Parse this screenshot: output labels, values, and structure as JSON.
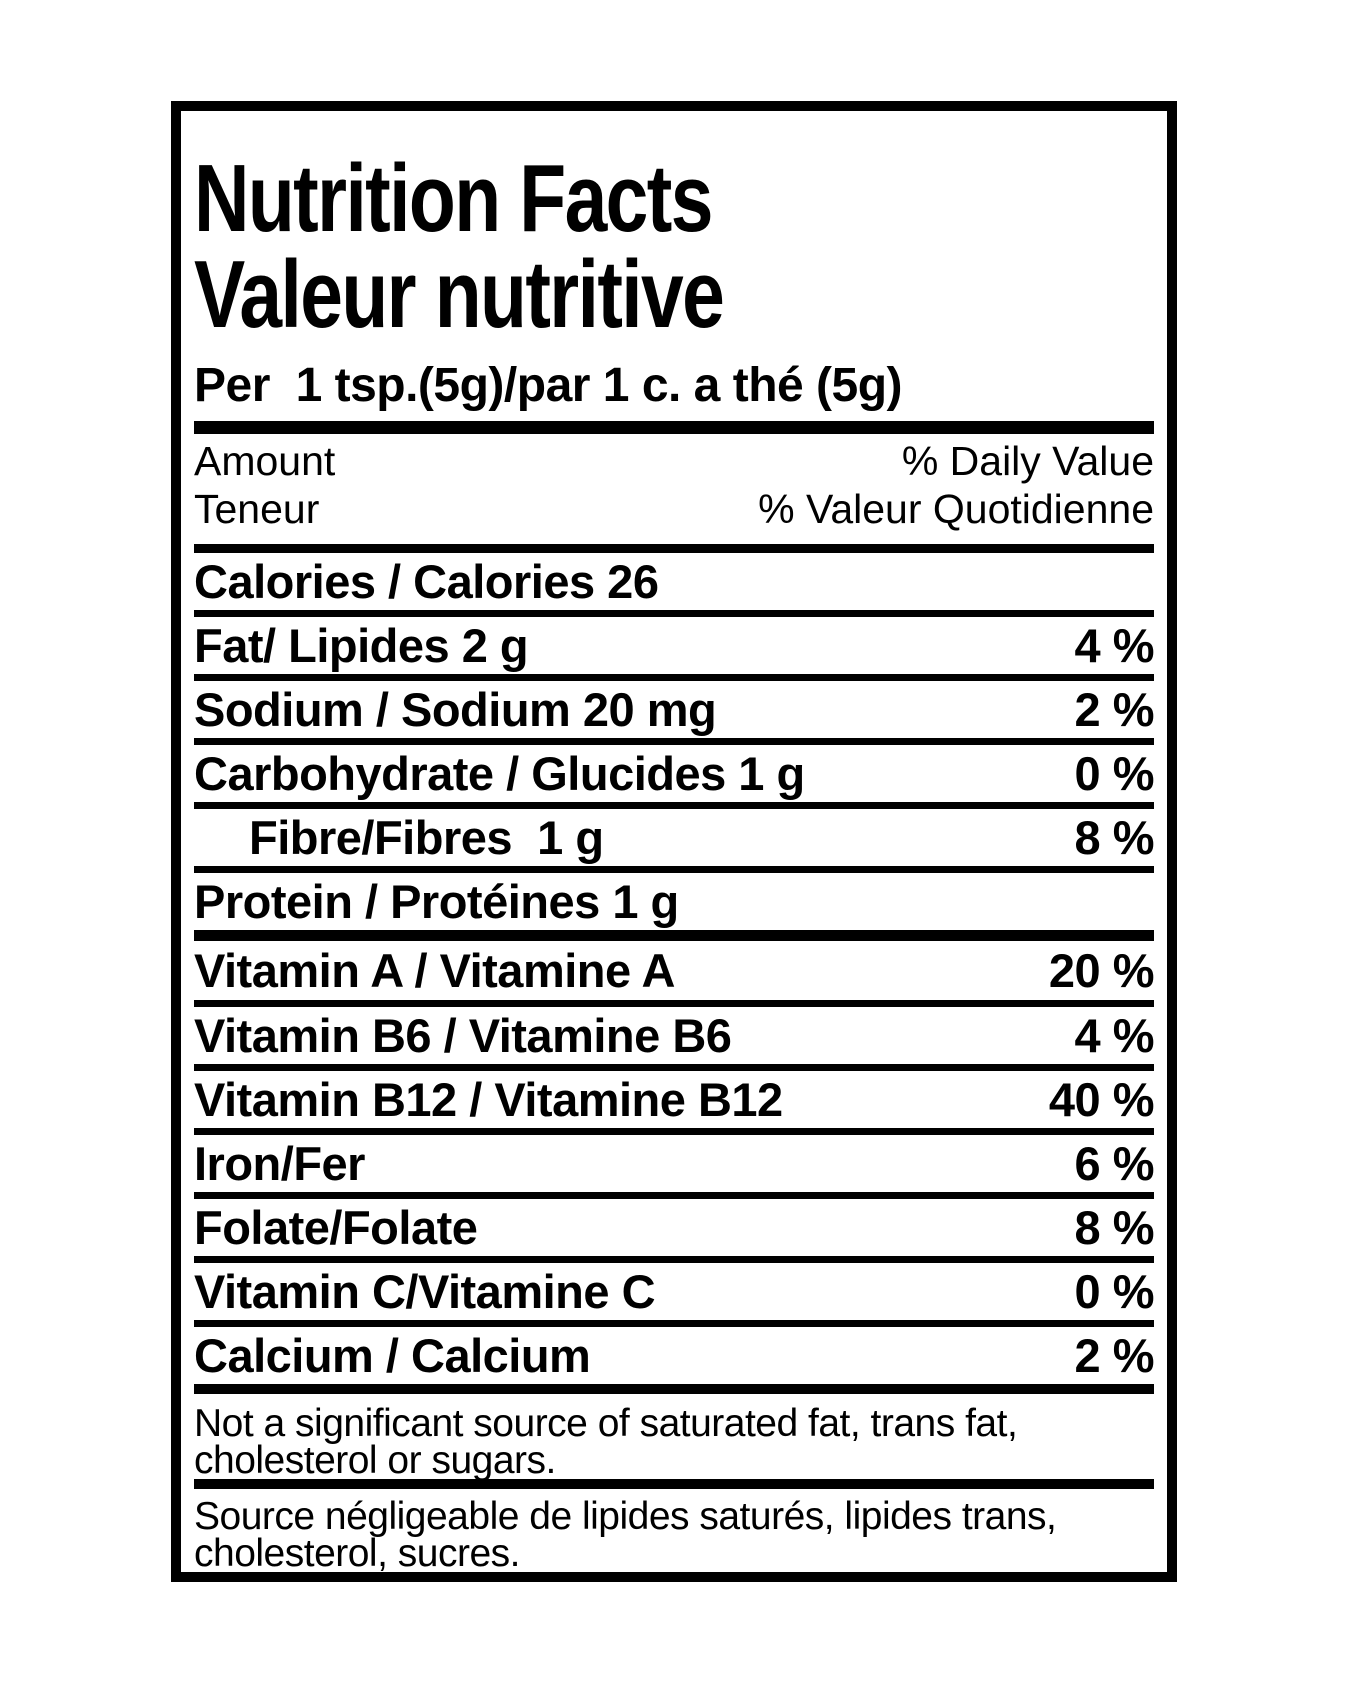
{
  "label": {
    "title_en": "Nutrition Facts",
    "title_fr": "Valeur nutritive",
    "serving": "Per  1 tsp.(5g)/par 1 c. a thé (5g)",
    "col_headers": {
      "amount_en": "Amount",
      "amount_fr": "Teneur",
      "dv_en": "% Daily Value",
      "dv_fr": "% Valeur Quotidienne"
    },
    "rows": [
      {
        "name": "Calories / Calories 26",
        "dv": ""
      },
      {
        "name": "Fat/ Lipides 2 g",
        "dv": "4 %"
      },
      {
        "name": "Sodium / Sodium 20 mg",
        "dv": "2 %"
      },
      {
        "name": "Carbohydrate / Glucides 1 g",
        "dv": "0 %"
      },
      {
        "name": "Fibre/Fibres  1 g",
        "dv": "8 %"
      },
      {
        "name": "Protein / Protéines 1 g",
        "dv": ""
      },
      {
        "name": "Vitamin A / Vitamine A",
        "dv": "20 %"
      },
      {
        "name": "Vitamin B6 / Vitamine B6",
        "dv": "4 %"
      },
      {
        "name": "Vitamin B12 / Vitamine B12",
        "dv": "40 %"
      },
      {
        "name": "Iron/Fer",
        "dv": "6 %"
      },
      {
        "name": "Folate/Folate",
        "dv": "8 %"
      },
      {
        "name": "Vitamin C/Vitamine C",
        "dv": "0 %"
      },
      {
        "name": "Calcium / Calcium",
        "dv": "2 %"
      }
    ],
    "footnote_en": {
      "line1": "Not a significant source of saturated fat, trans fat,",
      "line2": "cholesterol or sugars."
    },
    "footnote_fr": {
      "line1": "Source négligeable de lipides saturés, lipides trans,",
      "line2": "cholesterol, sucres."
    },
    "colors": {
      "ink": "#000000",
      "background": "#ffffff"
    }
  }
}
